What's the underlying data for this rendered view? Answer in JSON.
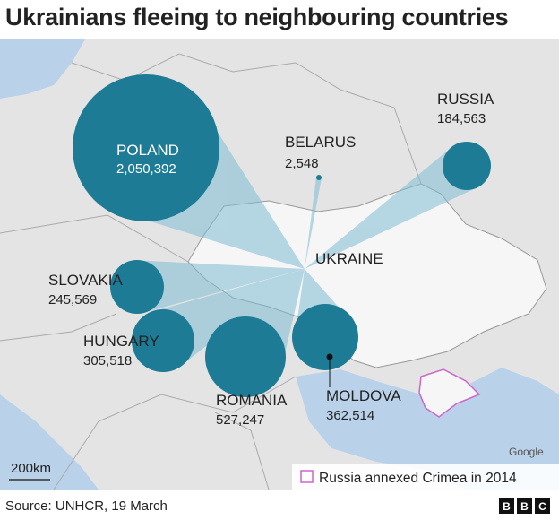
{
  "title": "Ukrainians fleeing to neighbouring countries",
  "colors": {
    "circle": "#1d7b95",
    "beam": "#7fbdd3",
    "land": "#e4e4e4",
    "ukraine": "#f6f6f6",
    "sea": "#b9d2ea",
    "crimea_outline": "#cc66cc"
  },
  "countries": [
    {
      "name": "POLAND",
      "value": "2,050,392"
    },
    {
      "name": "BELARUS",
      "value": "2,548"
    },
    {
      "name": "RUSSIA",
      "value": "184,563"
    },
    {
      "name": "SLOVAKIA",
      "value": "245,569"
    },
    {
      "name": "HUNGARY",
      "value": "305,518"
    },
    {
      "name": "ROMANIA",
      "value": "527,247"
    },
    {
      "name": "MOLDOVA",
      "value": "362,514"
    }
  ],
  "ukraine_label": "UKRAINE",
  "scale_label": "200km",
  "map_attribution": "Google",
  "legend": {
    "label": "Russia annexed Crimea in 2014"
  },
  "source": "Source: UNHCR, 19 March",
  "logo": [
    "B",
    "B",
    "C"
  ]
}
